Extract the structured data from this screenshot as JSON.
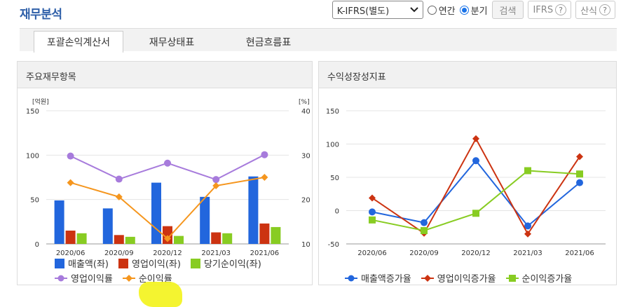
{
  "header": {
    "title": "재무분석",
    "select_value": "K-IFRS(별도)",
    "radio_annual": "연간",
    "radio_quarter": "분기",
    "search_label": "검색",
    "ifrs_label": "IFRS",
    "formula_label": "산식",
    "help_glyph": "?"
  },
  "tabs": [
    {
      "label": "포괄손익계산서",
      "active": true
    },
    {
      "label": "재무상태표",
      "active": false
    },
    {
      "label": "현금흐름표",
      "active": false
    }
  ],
  "left_panel": {
    "title": "주요재무항목"
  },
  "right_panel": {
    "title": "수익성장성지표"
  },
  "colors": {
    "revenue": "#2266dd",
    "op_income": "#cc3311",
    "net_income": "#88cc22",
    "op_margin": "#a77bdc",
    "net_margin": "#f5961e",
    "rev_growth": "#2266dd",
    "op_growth": "#cc3311",
    "net_growth": "#88cc22"
  },
  "chart_data": [
    {
      "type": "bar",
      "categories": [
        "2020/06",
        "2020/09",
        "2020/12",
        "2021/03",
        "2021/06"
      ],
      "ylabel": "[억원]",
      "y2label": "[%]",
      "ylim": [
        0,
        150
      ],
      "y2lim": [
        10,
        40
      ],
      "yticks": [
        "0",
        "50",
        "100",
        "150"
      ],
      "y2ticks": [
        "10",
        "20",
        "30",
        "40"
      ],
      "grid": true,
      "legend": "bottom",
      "series": [
        {
          "name": "매출액(좌)",
          "kind": "bar",
          "values": [
            49,
            40,
            69,
            53,
            76
          ]
        },
        {
          "name": "영업이익(좌)",
          "kind": "bar",
          "values": [
            15,
            10,
            20,
            13,
            23
          ]
        },
        {
          "name": "당기순이익(좌)",
          "kind": "bar",
          "values": [
            12,
            8,
            9,
            12,
            19
          ]
        },
        {
          "name": "영업이익률",
          "kind": "line",
          "axis": "right",
          "values": [
            29.8,
            24.6,
            28.2,
            24.5,
            30.1
          ]
        },
        {
          "name": "순이익률",
          "kind": "line",
          "axis": "right",
          "values": [
            23.8,
            20.6,
            11.2,
            23.1,
            25.0
          ]
        }
      ]
    },
    {
      "type": "line",
      "categories": [
        "2020/06",
        "2020/09",
        "2020/12",
        "2021/03",
        "2021/06"
      ],
      "ylim": [
        -50,
        150
      ],
      "yticks": [
        "-50",
        "0",
        "50",
        "100",
        "150"
      ],
      "grid": true,
      "legend": "bottom",
      "series": [
        {
          "name": "매출액증가율",
          "values": [
            -2,
            -18,
            75,
            -23,
            42
          ]
        },
        {
          "name": "영업이익증가율",
          "values": [
            19,
            -34,
            108,
            -35,
            81
          ]
        },
        {
          "name": "순이익증가율",
          "values": [
            -14,
            -30,
            -4,
            60,
            55
          ]
        }
      ]
    }
  ]
}
